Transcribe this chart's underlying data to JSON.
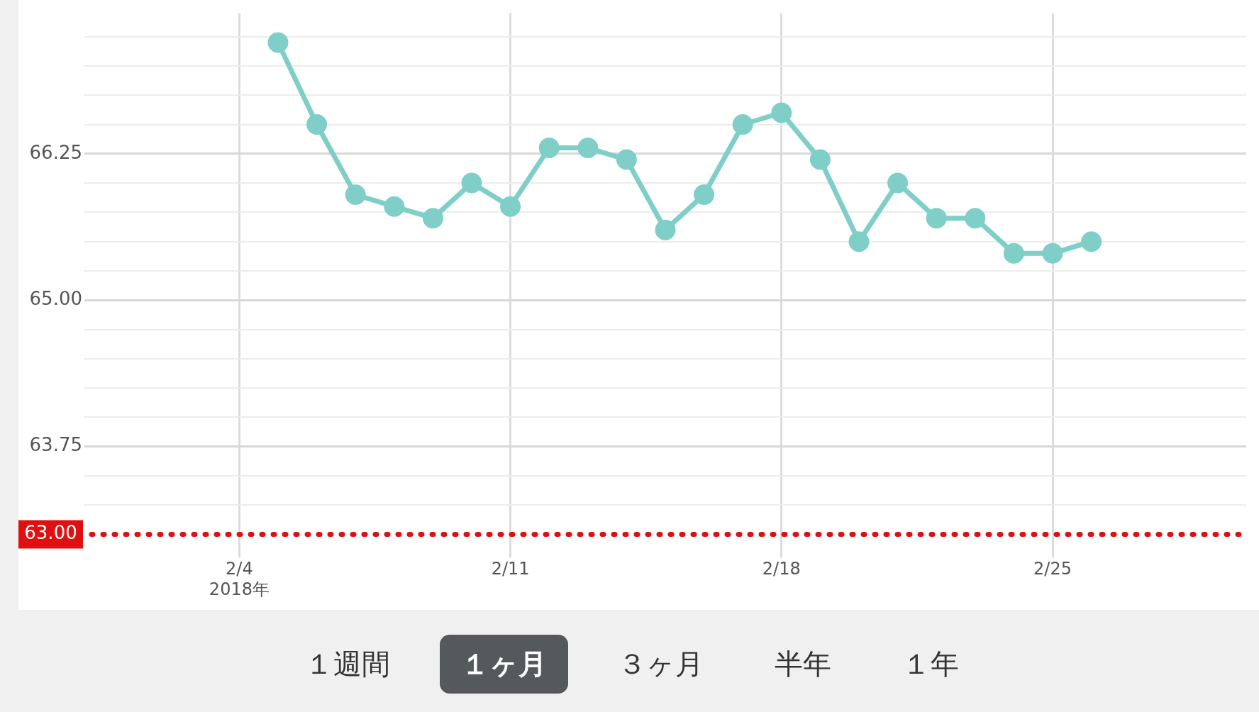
{
  "chart_data": {
    "type": "line",
    "x": [
      "2018-02-05",
      "2018-02-06",
      "2018-02-07",
      "2018-02-08",
      "2018-02-09",
      "2018-02-10",
      "2018-02-11",
      "2018-02-12",
      "2018-02-13",
      "2018-02-14",
      "2018-02-15",
      "2018-02-16",
      "2018-02-17",
      "2018-02-18",
      "2018-02-19",
      "2018-02-20",
      "2018-02-21",
      "2018-02-22",
      "2018-02-23",
      "2018-02-24",
      "2018-02-25",
      "2018-02-26"
    ],
    "series": [
      {
        "color": "#7fcfc8",
        "values": [
          67.2,
          66.5,
          65.9,
          65.8,
          65.7,
          66.0,
          65.8,
          66.3,
          66.3,
          66.2,
          65.6,
          65.9,
          66.5,
          66.6,
          66.2,
          65.5,
          66.0,
          65.7,
          65.7,
          65.4,
          65.4,
          65.5
        ]
      }
    ],
    "marker": "circle",
    "line_style": "solid",
    "grid": true,
    "legend": false,
    "xlim": [
      "2018-01-31",
      "2018-03-02"
    ],
    "xticks": [
      {
        "value": "2018-02-04",
        "label": "2/4\n2018年"
      },
      {
        "value": "2018-02-11",
        "label": "2/11"
      },
      {
        "value": "2018-02-18",
        "label": "2/18"
      },
      {
        "value": "2018-02-25",
        "label": "2/25"
      }
    ],
    "ylim": [
      62.85,
      67.45
    ],
    "yticks": [
      {
        "value": 63.25,
        "label": null
      },
      {
        "value": 63.5,
        "label": null
      },
      {
        "value": 63.75,
        "label": "63.75"
      },
      {
        "value": 64,
        "label": null
      },
      {
        "value": 64.25,
        "label": null
      },
      {
        "value": 64.5,
        "label": null
      },
      {
        "value": 64.75,
        "label": null
      },
      {
        "value": 65,
        "label": "65.00"
      },
      {
        "value": 65.25,
        "label": null
      },
      {
        "value": 65.5,
        "label": null
      },
      {
        "value": 65.75,
        "label": null
      },
      {
        "value": 66,
        "label": null
      },
      {
        "value": 66.25,
        "label": "66.25"
      },
      {
        "value": 66.5,
        "label": null
      },
      {
        "value": 66.75,
        "label": null
      },
      {
        "value": 67,
        "label": null
      },
      {
        "value": 67.25,
        "label": null
      }
    ],
    "ref_lines": [
      {
        "axis": "y",
        "value": 63,
        "label": "63.00",
        "color": "#e01010",
        "line_style": "dotted"
      }
    ],
    "annotations": [
      "１週間",
      "１ヶ月",
      "３ヶ月",
      "半年",
      "１年"
    ]
  }
}
